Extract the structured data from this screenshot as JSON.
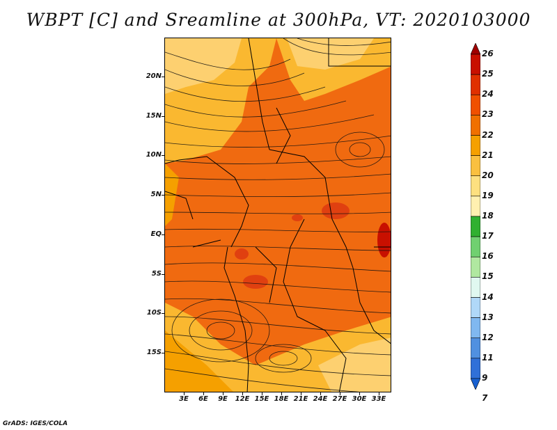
{
  "title": "WBPT [C] and Sreamline at 300hPa, VT: 2020103000",
  "footer": "GrADS: IGES/COLA",
  "lat_labels": [
    "20N",
    "15N",
    "10N",
    "5N",
    "EQ",
    "5S",
    "10S",
    "15S"
  ],
  "lon_labels": [
    "3E",
    "6E",
    "9E",
    "12E",
    "15E",
    "18E",
    "21E",
    "24E",
    "27E",
    "30E",
    "33E"
  ],
  "colorbar": {
    "labels": [
      "26",
      "25",
      "24",
      "23",
      "22",
      "21",
      "20",
      "19",
      "18",
      "17",
      "16",
      "15",
      "14",
      "13",
      "12",
      "11",
      "9",
      "7"
    ],
    "colors": [
      "#a00000",
      "#c81000",
      "#e03000",
      "#f05000",
      "#f07000",
      "#f5a000",
      "#fac040",
      "#fde080",
      "#fff0b0",
      "#30b030",
      "#70d070",
      "#b0e8a0",
      "#e0f8f0",
      "#b0d8f8",
      "#80b8f0",
      "#5090e0",
      "#3070d8",
      "#1860d0"
    ]
  }
}
